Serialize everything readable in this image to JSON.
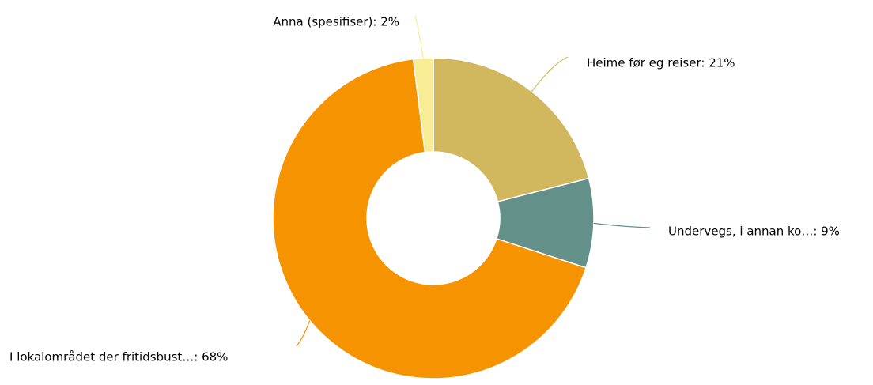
{
  "chart_data": {
    "type": "donut",
    "labels": [
      "Heime før eg reiser: 21%",
      "Undervegs, i annan ko…: 9%",
      "I lokalområdet der fritidsbust…: 68%",
      "Anna (spesifiser): 2%"
    ],
    "values": [
      21,
      9,
      68,
      2
    ],
    "colors": [
      "#d1b85f",
      "#64908a",
      "#f59300",
      "#f8ec94"
    ]
  }
}
